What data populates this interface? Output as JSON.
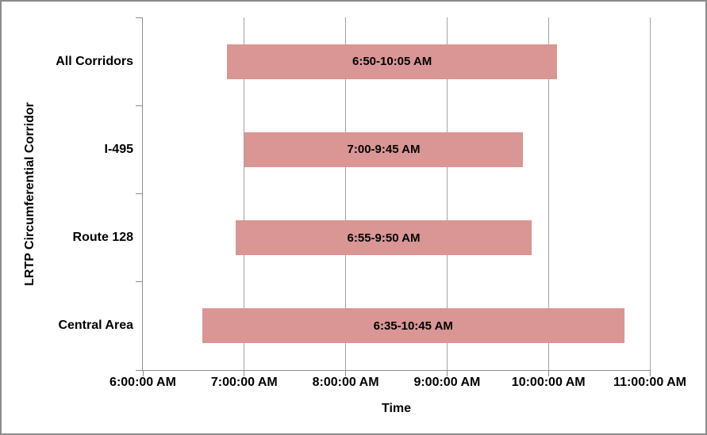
{
  "chart_data": {
    "type": "bar",
    "orientation": "horizontal",
    "title": "",
    "xlabel": "Time",
    "ylabel": "LRTP Circumferential Corridor",
    "categories": [
      "All Corridors",
      "I-495",
      "Route 128",
      "Central Area"
    ],
    "bars": [
      {
        "category": "All Corridors",
        "start_hour": 6.8333,
        "end_hour": 10.0833,
        "label": "6:50-10:05 AM"
      },
      {
        "category": "I-495",
        "start_hour": 7.0,
        "end_hour": 9.75,
        "label": "7:00-9:45 AM"
      },
      {
        "category": "Route 128",
        "start_hour": 6.9167,
        "end_hour": 9.8333,
        "label": "6:55-9:50 AM"
      },
      {
        "category": "Central Area",
        "start_hour": 6.5833,
        "end_hour": 10.75,
        "label": "6:35-10:45 AM"
      }
    ],
    "x_axis": {
      "min_hour": 6,
      "max_hour": 11,
      "ticks": [
        {
          "hour": 6,
          "label": "6:00:00 AM"
        },
        {
          "hour": 7,
          "label": "7:00:00 AM"
        },
        {
          "hour": 8,
          "label": "8:00:00 AM"
        },
        {
          "hour": 9,
          "label": "9:00:00 AM"
        },
        {
          "hour": 10,
          "label": "10:00:00 AM"
        },
        {
          "hour": 11,
          "label": "11:00:00 AM"
        }
      ]
    },
    "gridlines": true,
    "legend": "none",
    "colors": {
      "bar_fill": "#d99694",
      "gridline": "#a3a3a3",
      "axis_line": "#8e8e8e",
      "chart_border": "#8b8b8b",
      "text": "#000000"
    }
  }
}
